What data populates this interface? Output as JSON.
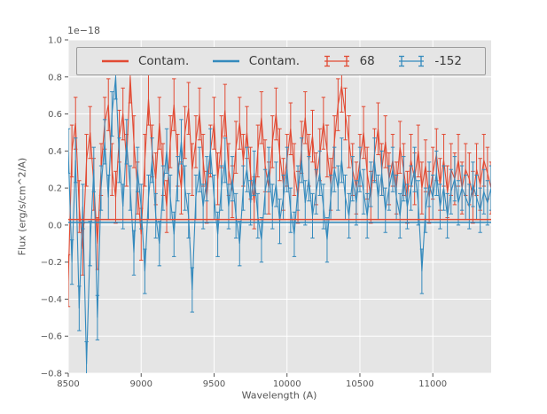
{
  "figure": {
    "background": "#ffffff",
    "axes_background": "#e5e5e5",
    "grid_color": "#ffffff",
    "tick_color": "#555555",
    "label_color": "#555555",
    "legend_text_color": "#3a3a3a"
  },
  "chart_data": {
    "type": "line",
    "title": "",
    "xlabel": "Wavelength (A)",
    "ylabel": "Flux (erg/s/cm^2/A)",
    "y_offset_text": "1e−18",
    "xlim": [
      8500,
      11400
    ],
    "ylim": [
      -0.8,
      1.0
    ],
    "xticks": [
      8500,
      9000,
      9500,
      10000,
      10500,
      11000
    ],
    "yticks": [
      -0.8,
      -0.6,
      -0.4,
      -0.2,
      0.0,
      0.2,
      0.4,
      0.6,
      0.8,
      1.0
    ],
    "grid": true,
    "legend_position": "upper center, horizontal, inside axes",
    "x_start": 8500,
    "x_step": 25,
    "series": [
      {
        "name": "Contam.",
        "color": "#e24a33",
        "type": "hline",
        "y": 0.03
      },
      {
        "name": "Contam.",
        "color": "#348abd",
        "type": "hline",
        "y": 0.015
      },
      {
        "name": "68",
        "color": "#e24a33",
        "type": "errorbar",
        "yerr": 0.14,
        "values": [
          -0.3,
          0.4,
          0.55,
          0.1,
          -0.13,
          0.35,
          0.5,
          0.22,
          -0.1,
          0.3,
          0.55,
          0.65,
          0.3,
          0.15,
          0.48,
          0.6,
          0.35,
          0.8,
          0.45,
          0.2,
          -0.05,
          0.35,
          0.68,
          0.4,
          0.25,
          0.55,
          0.3,
          0.1,
          0.45,
          0.65,
          0.35,
          0.2,
          0.5,
          0.63,
          0.3,
          0.45,
          0.6,
          0.35,
          0.15,
          0.4,
          0.55,
          0.25,
          0.45,
          0.62,
          0.3,
          0.18,
          0.42,
          0.55,
          0.35,
          0.5,
          0.28,
          0.12,
          0.4,
          0.58,
          0.32,
          0.2,
          0.45,
          0.6,
          0.38,
          0.22,
          0.35,
          0.52,
          0.3,
          0.15,
          0.42,
          0.58,
          0.35,
          0.48,
          0.25,
          0.38,
          0.55,
          0.4,
          0.22,
          0.45,
          0.65,
          0.75,
          0.6,
          0.45,
          0.3,
          0.2,
          0.35,
          0.5,
          0.28,
          0.15,
          0.38,
          0.52,
          0.3,
          0.45,
          0.25,
          0.35,
          0.2,
          0.42,
          0.3,
          0.15,
          0.35,
          0.25,
          0.4,
          0.2,
          0.32,
          0.15,
          0.28,
          0.38,
          0.22,
          0.35,
          0.18,
          0.3,
          0.25,
          0.35,
          0.2,
          0.3,
          0.25,
          0.15,
          0.3,
          0.22,
          0.35,
          0.28,
          0.2
        ]
      },
      {
        "name": "-152",
        "color": "#348abd",
        "type": "errorbar",
        "yerr": 0.12,
        "values": [
          0.4,
          -0.2,
          0.35,
          -0.45,
          0.1,
          -0.75,
          -0.1,
          0.3,
          -0.5,
          0.2,
          0.45,
          0.15,
          0.6,
          0.8,
          0.35,
          0.1,
          0.45,
          0.2,
          -0.15,
          0.3,
          0.1,
          -0.25,
          0.15,
          0.35,
          0.05,
          -0.1,
          0.2,
          0.4,
          0.15,
          -0.05,
          0.25,
          0.45,
          0.2,
          0.05,
          -0.35,
          0.15,
          0.3,
          0.1,
          0.25,
          0.4,
          0.15,
          -0.05,
          0.2,
          0.35,
          0.1,
          0.25,
          0.05,
          -0.1,
          0.2,
          0.3,
          0.12,
          0.28,
          0.05,
          -0.08,
          0.18,
          0.3,
          0.1,
          0.22,
          0.02,
          0.15,
          0.3,
          0.08,
          -0.05,
          0.2,
          0.35,
          0.12,
          0.25,
          0.05,
          0.18,
          0.28,
          0.1,
          -0.08,
          0.15,
          0.3,
          0.2,
          0.35,
          0.15,
          0.05,
          0.25,
          0.12,
          0.3,
          0.18,
          0.05,
          0.22,
          0.35,
          0.15,
          0.28,
          0.08,
          0.2,
          0.3,
          0.15,
          0.05,
          0.25,
          0.1,
          0.2,
          0.3,
          0.12,
          -0.25,
          0.08,
          0.22,
          0.15,
          0.28,
          0.1,
          0.2,
          0.05,
          0.18,
          0.25,
          0.12,
          0.2,
          0.15,
          0.1,
          0.22,
          0.15,
          0.08,
          0.18,
          0.12,
          0.2
        ]
      }
    ]
  }
}
